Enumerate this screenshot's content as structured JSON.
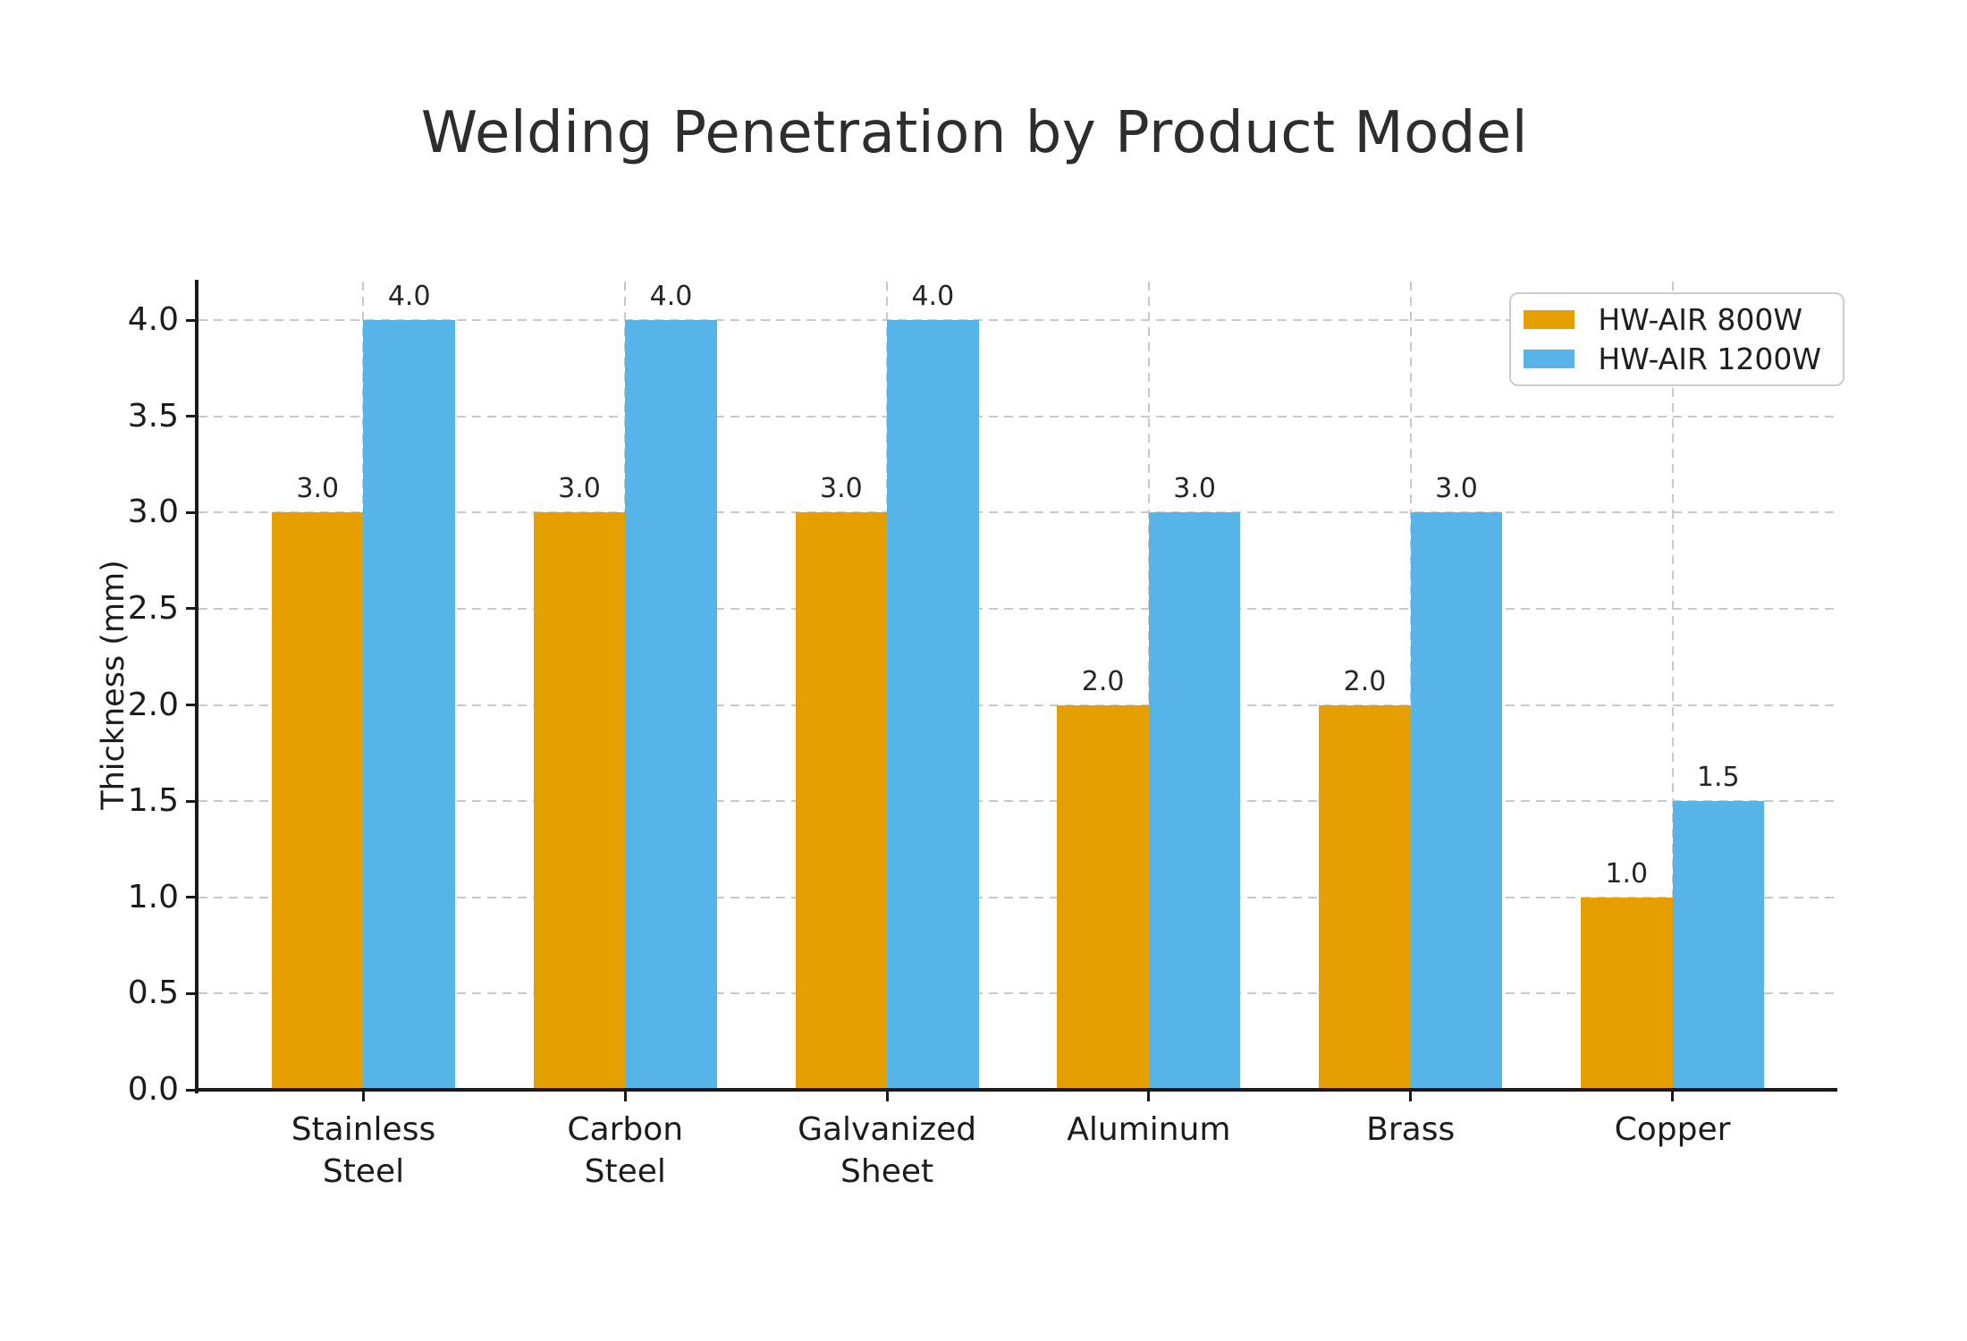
{
  "chart_data": {
    "type": "bar",
    "title": "Welding Penetration by Product Model",
    "ylabel": "Thickness (mm)",
    "xlabel": "",
    "categories": [
      "Stainless\nSteel",
      "Carbon\nSteel",
      "Galvanized\nSheet",
      "Aluminum",
      "Brass",
      "Copper"
    ],
    "series": [
      {
        "name": "HW-AIR 800W",
        "color": "#E69F00",
        "values": [
          3.0,
          3.0,
          3.0,
          2.0,
          2.0,
          1.0
        ]
      },
      {
        "name": "HW-AIR 1200W",
        "color": "#56B4E9",
        "values": [
          4.0,
          4.0,
          4.0,
          3.0,
          3.0,
          1.5
        ]
      }
    ],
    "bar_value_labels": [
      [
        "3.0",
        "3.0",
        "3.0",
        "2.0",
        "2.0",
        "1.0"
      ],
      [
        "4.0",
        "4.0",
        "4.0",
        "3.0",
        "3.0",
        "1.5"
      ]
    ],
    "ytick_labels": [
      "0.0",
      "0.5",
      "1.0",
      "1.5",
      "2.0",
      "2.5",
      "3.0",
      "3.5",
      "4.0"
    ],
    "yticks": [
      0,
      0.5,
      1.0,
      1.5,
      2.0,
      2.5,
      3.0,
      3.5,
      4.0
    ],
    "ylim": [
      0,
      4.2
    ],
    "grid": "dashed-both-axes",
    "legend_position": "upper-right",
    "colors": {
      "series_800w": "#E69F00",
      "series_1200w": "#56B4E9",
      "grid": "#c9c9c9",
      "spine": "#1a1a1a",
      "text": "#1c1c1c",
      "annotation": "#262626",
      "legend_border": "#cccccc",
      "background": "#ffffff"
    }
  }
}
